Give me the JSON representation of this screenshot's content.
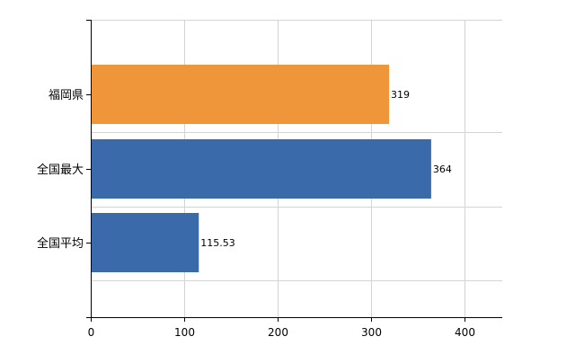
{
  "chart_data": {
    "type": "bar",
    "orientation": "horizontal",
    "categories": [
      "福岡県",
      "全国最大",
      "全国平均"
    ],
    "values": [
      319,
      364,
      115.53
    ],
    "value_labels": [
      "319",
      "364",
      "115.53"
    ],
    "colors": [
      "#f0963a",
      "#3a6aa9",
      "#3a6aa9"
    ],
    "xlim": [
      0,
      440
    ],
    "xticks": [
      0,
      100,
      200,
      300,
      400
    ],
    "grid": true,
    "legend": "none",
    "title": "",
    "xlabel": "",
    "ylabel": ""
  }
}
